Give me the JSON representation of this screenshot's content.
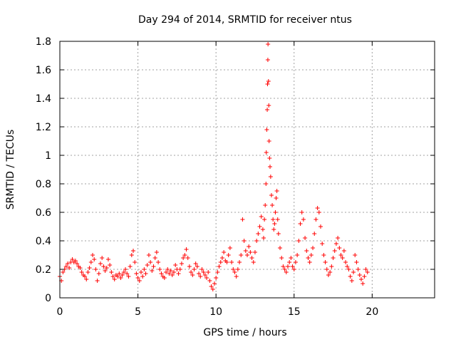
{
  "chart_data": {
    "type": "scatter",
    "title": "Day 294 of 2014, SRMTID for receiver ntus",
    "xlabel": "GPS time / hours",
    "ylabel": "SRMTID / TECUs",
    "xlim": [
      0,
      24
    ],
    "ylim": [
      0,
      1.8
    ],
    "xticks": [
      "0",
      "5",
      "10",
      "15",
      "20"
    ],
    "xtick_values": [
      0,
      5,
      10,
      15,
      20
    ],
    "yticks": [
      "0",
      "0.2",
      "0.4",
      "0.6",
      "0.8",
      "1",
      "1.2",
      "1.4",
      "1.6",
      "1.8"
    ],
    "ytick_values": [
      0,
      0.2,
      0.4,
      0.6,
      0.8,
      1.0,
      1.2,
      1.4,
      1.6,
      1.8
    ],
    "grid": true,
    "marker": "+",
    "color": "#ff0000",
    "series": [
      {
        "name": "ntus",
        "points": [
          [
            0.0,
            0.15
          ],
          [
            0.1,
            0.12
          ],
          [
            0.2,
            0.18
          ],
          [
            0.3,
            0.2
          ],
          [
            0.4,
            0.22
          ],
          [
            0.5,
            0.24
          ],
          [
            0.6,
            0.21
          ],
          [
            0.7,
            0.25
          ],
          [
            0.8,
            0.27
          ],
          [
            0.9,
            0.25
          ],
          [
            1.0,
            0.26
          ],
          [
            1.1,
            0.24
          ],
          [
            1.2,
            0.22
          ],
          [
            1.3,
            0.21
          ],
          [
            1.4,
            0.18
          ],
          [
            1.5,
            0.16
          ],
          [
            1.6,
            0.15
          ],
          [
            1.7,
            0.13
          ],
          [
            1.8,
            0.18
          ],
          [
            1.9,
            0.21
          ],
          [
            2.0,
            0.25
          ],
          [
            2.1,
            0.3
          ],
          [
            2.2,
            0.27
          ],
          [
            2.3,
            0.2
          ],
          [
            2.4,
            0.12
          ],
          [
            2.5,
            0.17
          ],
          [
            2.6,
            0.24
          ],
          [
            2.7,
            0.28
          ],
          [
            2.8,
            0.22
          ],
          [
            2.9,
            0.19
          ],
          [
            3.0,
            0.21
          ],
          [
            3.1,
            0.27
          ],
          [
            3.2,
            0.23
          ],
          [
            3.3,
            0.18
          ],
          [
            3.4,
            0.15
          ],
          [
            3.5,
            0.13
          ],
          [
            3.6,
            0.16
          ],
          [
            3.7,
            0.15
          ],
          [
            3.8,
            0.17
          ],
          [
            3.9,
            0.14
          ],
          [
            4.0,
            0.16
          ],
          [
            4.1,
            0.18
          ],
          [
            4.2,
            0.2
          ],
          [
            4.3,
            0.17
          ],
          [
            4.4,
            0.15
          ],
          [
            4.5,
            0.22
          ],
          [
            4.6,
            0.3
          ],
          [
            4.7,
            0.33
          ],
          [
            4.8,
            0.25
          ],
          [
            4.9,
            0.17
          ],
          [
            5.0,
            0.14
          ],
          [
            5.1,
            0.12
          ],
          [
            5.2,
            0.18
          ],
          [
            5.3,
            0.15
          ],
          [
            5.4,
            0.2
          ],
          [
            5.5,
            0.17
          ],
          [
            5.6,
            0.23
          ],
          [
            5.7,
            0.3
          ],
          [
            5.8,
            0.25
          ],
          [
            5.9,
            0.19
          ],
          [
            6.0,
            0.22
          ],
          [
            6.1,
            0.28
          ],
          [
            6.2,
            0.32
          ],
          [
            6.3,
            0.25
          ],
          [
            6.4,
            0.2
          ],
          [
            6.5,
            0.17
          ],
          [
            6.6,
            0.15
          ],
          [
            6.7,
            0.14
          ],
          [
            6.8,
            0.18
          ],
          [
            6.9,
            0.2
          ],
          [
            7.0,
            0.17
          ],
          [
            7.1,
            0.19
          ],
          [
            7.2,
            0.16
          ],
          [
            7.3,
            0.18
          ],
          [
            7.4,
            0.23
          ],
          [
            7.5,
            0.2
          ],
          [
            7.6,
            0.17
          ],
          [
            7.7,
            0.2
          ],
          [
            7.8,
            0.24
          ],
          [
            7.9,
            0.28
          ],
          [
            8.0,
            0.3
          ],
          [
            8.1,
            0.34
          ],
          [
            8.2,
            0.28
          ],
          [
            8.3,
            0.22
          ],
          [
            8.4,
            0.18
          ],
          [
            8.5,
            0.16
          ],
          [
            8.6,
            0.2
          ],
          [
            8.7,
            0.24
          ],
          [
            8.8,
            0.22
          ],
          [
            8.9,
            0.17
          ],
          [
            9.0,
            0.15
          ],
          [
            9.1,
            0.2
          ],
          [
            9.2,
            0.18
          ],
          [
            9.3,
            0.16
          ],
          [
            9.4,
            0.14
          ],
          [
            9.5,
            0.18
          ],
          [
            9.6,
            0.12
          ],
          [
            9.7,
            0.08
          ],
          [
            9.8,
            0.06
          ],
          [
            9.9,
            0.1
          ],
          [
            10.0,
            0.14
          ],
          [
            10.1,
            0.18
          ],
          [
            10.2,
            0.22
          ],
          [
            10.3,
            0.25
          ],
          [
            10.4,
            0.28
          ],
          [
            10.5,
            0.32
          ],
          [
            10.6,
            0.26
          ],
          [
            10.7,
            0.25
          ],
          [
            10.8,
            0.3
          ],
          [
            10.9,
            0.35
          ],
          [
            11.0,
            0.25
          ],
          [
            11.1,
            0.2
          ],
          [
            11.2,
            0.18
          ],
          [
            11.3,
            0.15
          ],
          [
            11.4,
            0.2
          ],
          [
            11.5,
            0.25
          ],
          [
            11.6,
            0.3
          ],
          [
            11.7,
            0.55
          ],
          [
            11.8,
            0.4
          ],
          [
            11.9,
            0.33
          ],
          [
            12.0,
            0.3
          ],
          [
            12.1,
            0.36
          ],
          [
            12.2,
            0.32
          ],
          [
            12.3,
            0.28
          ],
          [
            12.4,
            0.25
          ],
          [
            12.5,
            0.32
          ],
          [
            12.6,
            0.4
          ],
          [
            12.7,
            0.45
          ],
          [
            12.8,
            0.5
          ],
          [
            12.9,
            0.57
          ],
          [
            13.0,
            0.48
          ],
          [
            13.05,
            0.42
          ],
          [
            13.1,
            0.55
          ],
          [
            13.15,
            0.65
          ],
          [
            13.2,
            0.8
          ],
          [
            13.22,
            1.02
          ],
          [
            13.25,
            1.18
          ],
          [
            13.28,
            1.32
          ],
          [
            13.3,
            1.5
          ],
          [
            13.32,
            1.67
          ],
          [
            13.33,
            1.78
          ],
          [
            13.36,
            1.52
          ],
          [
            13.38,
            1.35
          ],
          [
            13.4,
            1.1
          ],
          [
            13.43,
            0.98
          ],
          [
            13.46,
            0.92
          ],
          [
            13.5,
            0.85
          ],
          [
            13.55,
            0.72
          ],
          [
            13.6,
            0.65
          ],
          [
            13.65,
            0.55
          ],
          [
            13.7,
            0.48
          ],
          [
            13.75,
            0.52
          ],
          [
            13.8,
            0.6
          ],
          [
            13.85,
            0.7
          ],
          [
            13.9,
            0.75
          ],
          [
            13.95,
            0.55
          ],
          [
            14.0,
            0.45
          ],
          [
            14.1,
            0.35
          ],
          [
            14.2,
            0.28
          ],
          [
            14.3,
            0.22
          ],
          [
            14.4,
            0.2
          ],
          [
            14.5,
            0.18
          ],
          [
            14.6,
            0.22
          ],
          [
            14.7,
            0.25
          ],
          [
            14.8,
            0.28
          ],
          [
            14.9,
            0.22
          ],
          [
            15.0,
            0.2
          ],
          [
            15.1,
            0.25
          ],
          [
            15.2,
            0.3
          ],
          [
            15.3,
            0.4
          ],
          [
            15.4,
            0.52
          ],
          [
            15.5,
            0.6
          ],
          [
            15.6,
            0.55
          ],
          [
            15.7,
            0.42
          ],
          [
            15.8,
            0.33
          ],
          [
            15.9,
            0.28
          ],
          [
            16.0,
            0.25
          ],
          [
            16.1,
            0.3
          ],
          [
            16.2,
            0.35
          ],
          [
            16.3,
            0.45
          ],
          [
            16.4,
            0.55
          ],
          [
            16.5,
            0.63
          ],
          [
            16.6,
            0.6
          ],
          [
            16.7,
            0.5
          ],
          [
            16.8,
            0.38
          ],
          [
            16.9,
            0.3
          ],
          [
            17.0,
            0.25
          ],
          [
            17.1,
            0.2
          ],
          [
            17.2,
            0.16
          ],
          [
            17.3,
            0.18
          ],
          [
            17.4,
            0.22
          ],
          [
            17.5,
            0.28
          ],
          [
            17.6,
            0.33
          ],
          [
            17.7,
            0.38
          ],
          [
            17.8,
            0.42
          ],
          [
            17.9,
            0.35
          ],
          [
            18.0,
            0.3
          ],
          [
            18.1,
            0.28
          ],
          [
            18.2,
            0.33
          ],
          [
            18.3,
            0.25
          ],
          [
            18.4,
            0.22
          ],
          [
            18.5,
            0.2
          ],
          [
            18.6,
            0.15
          ],
          [
            18.7,
            0.12
          ],
          [
            18.8,
            0.18
          ],
          [
            18.9,
            0.3
          ],
          [
            19.0,
            0.25
          ],
          [
            19.1,
            0.2
          ],
          [
            19.2,
            0.16
          ],
          [
            19.3,
            0.13
          ],
          [
            19.4,
            0.1
          ],
          [
            19.5,
            0.15
          ],
          [
            19.6,
            0.2
          ],
          [
            19.7,
            0.18
          ]
        ]
      }
    ]
  }
}
